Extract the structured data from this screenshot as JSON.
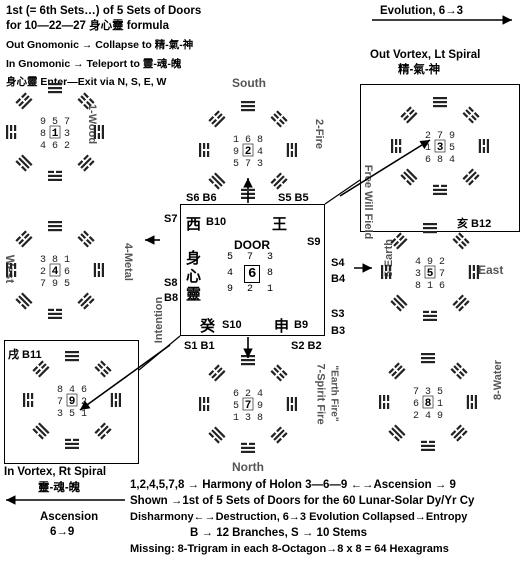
{
  "header": {
    "line1": "1st (= 6th Sets…) of 5 Sets of Doors",
    "line2": "for 10—22—27 身心靈 formula",
    "line3": "Out Gnomonic → Collapse to 精-氣-神",
    "line4": "In Gnomonic → Teleport to 靈-魂-魄",
    "line5": "身心靈 Enter—Exit via N, S, E, W"
  },
  "top_right": {
    "evolution": "Evolution, 6→3",
    "vortex": "Out Vortex, Lt Spiral",
    "chars": "精-氣-神",
    "branch": "亥 B12"
  },
  "directions": {
    "south": "South",
    "north": "North",
    "east": "East",
    "west": "West"
  },
  "octagons": {
    "wood": "1-Wood",
    "fire": "2-Fire",
    "metal": "4-Metal",
    "earth": "5-Earth",
    "water": "8-Water",
    "spirit_fire": "7-Spirit Fire",
    "earth_fire": "\"Earth Fire\""
  },
  "side_labels": {
    "free_will": "Free Will Field",
    "intention": "Intention"
  },
  "door": {
    "title": "DOOR",
    "west": "西",
    "b10": "B10",
    "wang": "王",
    "shen": "身",
    "xin": "心",
    "ling": "靈",
    "gui": "癸",
    "s10": "S10",
    "shen2": "申",
    "b9": "B9",
    "s9": "S9",
    "grid": [
      "5",
      "7",
      "3",
      "4",
      "6",
      "8",
      "9",
      "2",
      "1"
    ]
  },
  "stems": {
    "s6b6": "S6 B6",
    "s5b5": "S5 B5",
    "s7": "S7",
    "s8": "S8",
    "b8": "B8",
    "s4": "S4",
    "b4": "B4",
    "s3": "S3",
    "b3": "B3",
    "s1b1": "S1 B1",
    "s2b2": "S2 B2"
  },
  "bottom_left": {
    "chars_b11": "戌 B11",
    "vortex": "In Vortex, Rt Spiral",
    "chars": "靈-魂-魄",
    "ascension": "Ascension",
    "ratio": "6→9"
  },
  "footer": {
    "line1": "1,2,4,5,7,8 → Harmony of Holon 3—6—9 ←→Ascension → 9",
    "line2": "Shown →1st of 5 Sets of Doors for the 60 Lunar-Solar Dy/Yr Cy",
    "line3": "Disharmony←→Destruction, 6→3 Evolution Collapsed→Entropy",
    "line4": "B → 12 Branches, S → 10 Stems",
    "line5": "Missing: 8-Trigram in each 8-Octagon→8 x 8 = 64 Hexagrams"
  },
  "grids": {
    "wood": [
      "9",
      "5",
      "7",
      "8",
      "1",
      "3",
      "4",
      "6",
      "2"
    ],
    "fire": [
      "1",
      "6",
      "8",
      "9",
      "2",
      "4",
      "5",
      "7",
      "3"
    ],
    "metal": [
      "3",
      "8",
      "1",
      "2",
      "4",
      "6",
      "7",
      "9",
      "5"
    ],
    "earth": [
      "4",
      "9",
      "2",
      "3",
      "5",
      "7",
      "8",
      "1",
      "6"
    ],
    "water": [
      "7",
      "3",
      "5",
      "6",
      "8",
      "1",
      "2",
      "4",
      "9"
    ],
    "spirit_fire": [
      "6",
      "2",
      "4",
      "5",
      "7",
      "9",
      "1",
      "3",
      "8"
    ],
    "topright": [
      "2",
      "7",
      "9",
      "1",
      "3",
      "5",
      "6",
      "8",
      "4"
    ],
    "bottomleft": [
      "8",
      "4",
      "6",
      "7",
      "9",
      "2",
      "3",
      "5",
      "1"
    ]
  }
}
